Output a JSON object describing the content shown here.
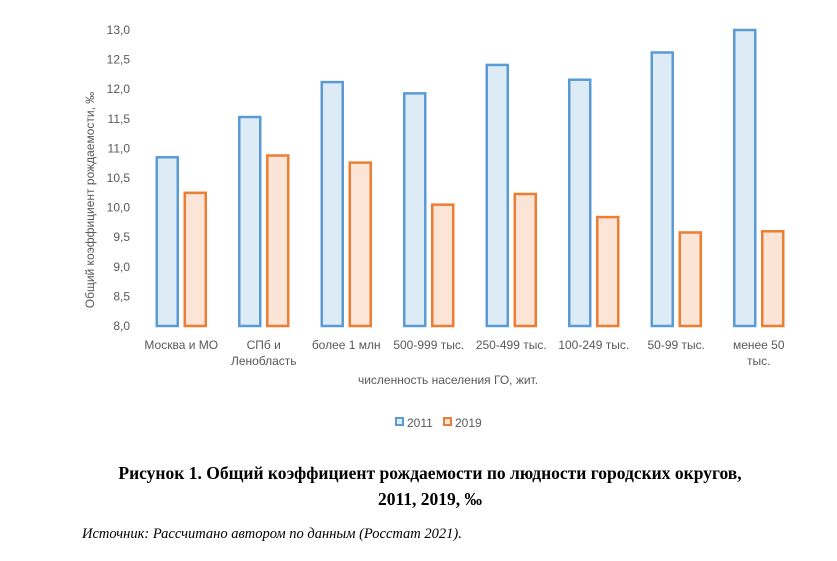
{
  "chart_data": {
    "type": "bar",
    "categories": [
      [
        "Москва и МО"
      ],
      [
        "СПб и",
        "Ленобласть"
      ],
      [
        "более 1 млн"
      ],
      [
        "500-999 тыс."
      ],
      [
        "250-499 тыс."
      ],
      [
        "100-249 тыс."
      ],
      [
        "50-99 тыс."
      ],
      [
        "менее 50",
        "тыс."
      ]
    ],
    "series": [
      {
        "name": "2011",
        "values": [
          10.85,
          11.53,
          12.12,
          11.93,
          12.41,
          12.16,
          12.62,
          13.0
        ],
        "stroke": "#5b9bd5",
        "fill": "#ddebf7"
      },
      {
        "name": "2019",
        "values": [
          10.25,
          10.88,
          10.76,
          10.05,
          10.23,
          9.84,
          9.58,
          9.6
        ],
        "stroke": "#ed7d31",
        "fill": "#fce4d6"
      }
    ],
    "ylabel": "Общий коэффициент рождаемости, ‰",
    "xlabel": "численность населения ГО, жит.",
    "ylim": [
      8.0,
      13.0
    ],
    "yticks": [
      "8,0",
      "8,5",
      "9,0",
      "9,5",
      "10,0",
      "10,5",
      "11,0",
      "11,5",
      "12,0",
      "12,5",
      "13,0"
    ],
    "grid": false,
    "legend_position": "bottom"
  },
  "caption": {
    "line1": "Рисунок 1. Общий коэффициент рождаемости по людности городских округов,",
    "line2": "2011, 2019, ‰"
  },
  "source": "Источник: Рассчитано автором по данным (Росстат 2021)."
}
